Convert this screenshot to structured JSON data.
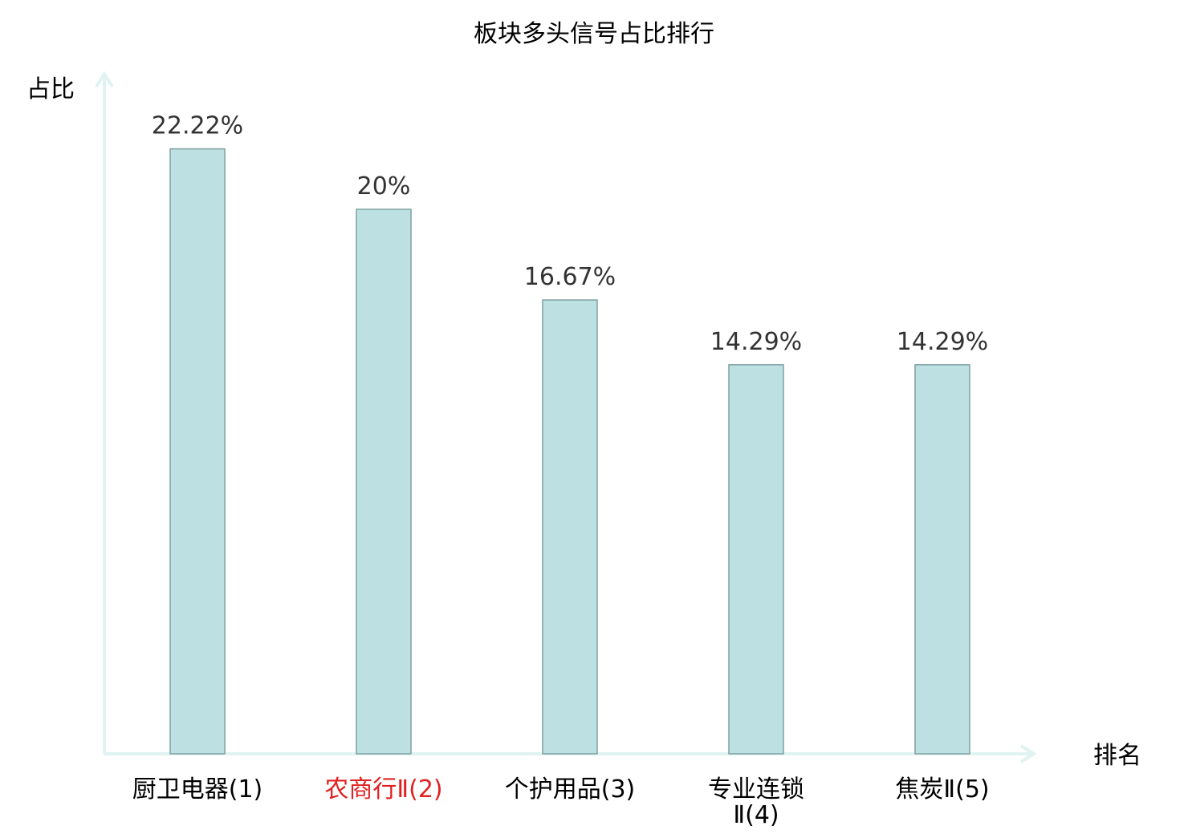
{
  "chart_data": {
    "type": "bar",
    "title": "板块多头信号占比排行",
    "ylabel": "占比",
    "xlabel": "排名",
    "ylim": [
      0,
      25
    ],
    "grid": false,
    "legend": "none",
    "categories": [
      {
        "name": "厨卫电器",
        "rank": "(1)",
        "highlight": false
      },
      {
        "name": "农商行Ⅱ",
        "rank": "(2)",
        "highlight": true
      },
      {
        "name": "个护用品",
        "rank": "(3)",
        "highlight": false
      },
      {
        "name": "专业连锁",
        "name2": "Ⅱ",
        "rank": "(4)",
        "highlight": false
      },
      {
        "name": "焦炭Ⅱ",
        "rank": "(5)",
        "highlight": false
      }
    ],
    "values": [
      22.22,
      20,
      16.67,
      14.29,
      14.29
    ],
    "value_labels": [
      "22.22%",
      "20%",
      "16.67%",
      "14.29%",
      "14.29%"
    ],
    "colors": {
      "bar_fill": "#bde0e2",
      "bar_stroke": "#7fa0a2",
      "axis": "#e0f3f1",
      "highlight_text": "#e02020",
      "normal_text": "#000000",
      "value_text": "#333333"
    }
  }
}
